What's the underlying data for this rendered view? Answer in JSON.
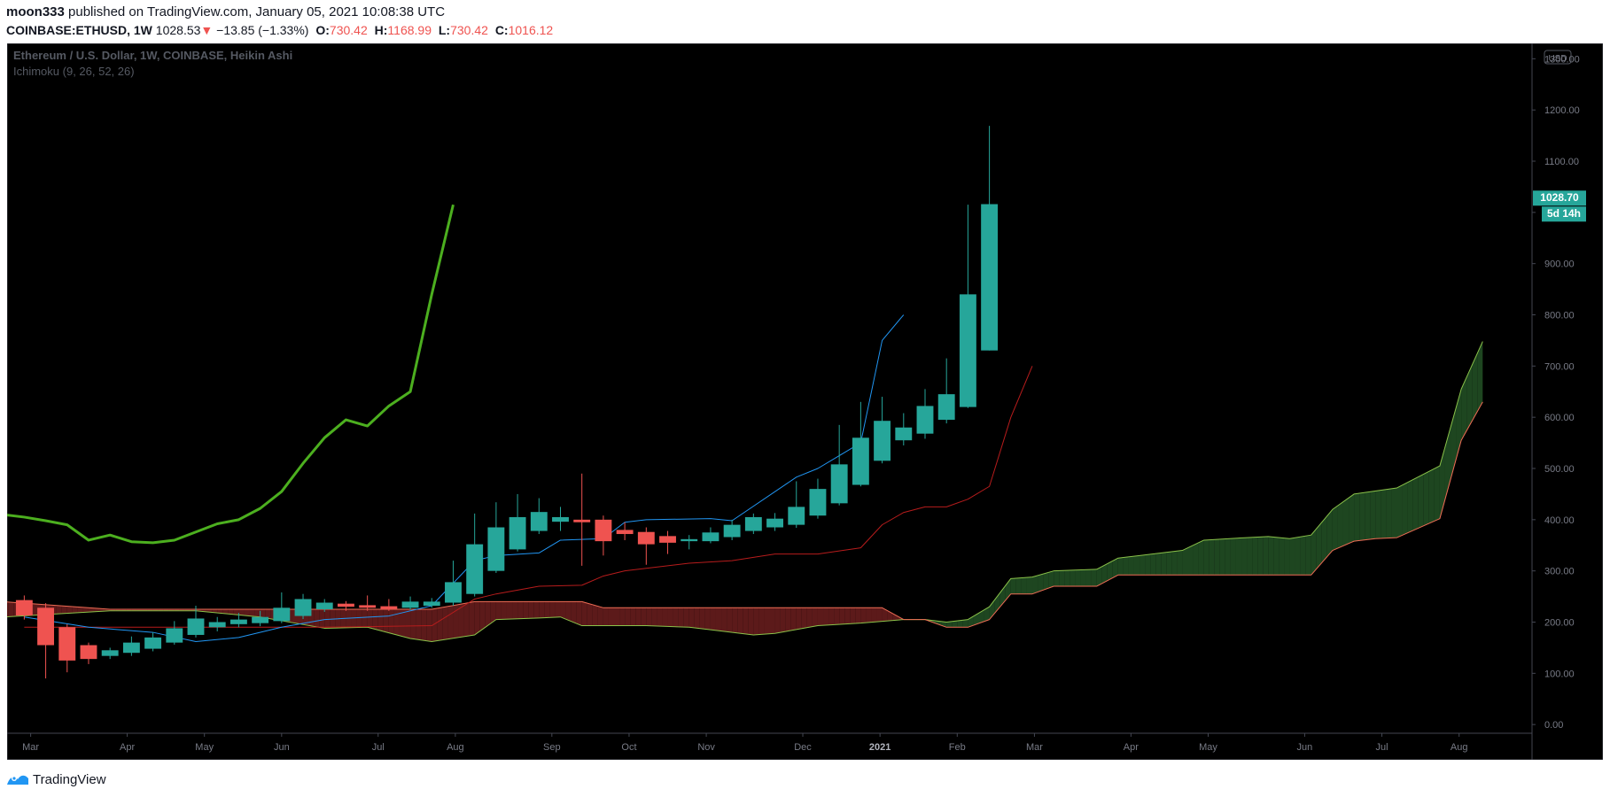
{
  "header": {
    "publisher": "moon333",
    "published_text": "published on TradingView.com, January 05, 2021 10:08:38 UTC",
    "symbol": "COINBASE:ETHUSD, 1W",
    "last_price": "1028.53",
    "change_arrow": "▼",
    "change": "−13.85 (−1.33%)",
    "o_label": "O:",
    "o_value": "730.42",
    "h_label": "H:",
    "h_value": "1168.99",
    "l_label": "L:",
    "l_value": "730.42",
    "c_label": "C:",
    "c_value": "1016.12"
  },
  "legend": {
    "title": "Ethereum / U.S. Dollar, 1W, COINBASE, Heikin Ashi",
    "indicator": "Ichimoku (9, 26, 52, 26)"
  },
  "price_scale": {
    "currency": "USD",
    "last_price_tag": "1028.70",
    "countdown_tag": "5d 14h"
  },
  "footer": {
    "brand": "TradingView",
    "logo_icon": "tradingview-logo-icon"
  },
  "colors": {
    "up": "#26a69a",
    "down": "#ef5350",
    "tenkan": "#2196f3",
    "kijun": "#b71c1c",
    "chikou": "#4caf1f",
    "cloud_bull": "#1e4620",
    "cloud_bear": "#5c1a1a",
    "span_a": "#8bc34a",
    "span_b": "#ef6c55",
    "background": "#000000",
    "axis_text": "#787b86"
  },
  "chart_data": {
    "type": "candlestick",
    "style": "Heikin Ashi",
    "timeframe": "1W",
    "x_start_week": -0.8,
    "x_end_week": 70.3,
    "ylim": [
      -17,
      1330
    ],
    "y_ticks": [
      0,
      100,
      200,
      300,
      400,
      500,
      600,
      700,
      800,
      900,
      1000,
      1100,
      1200,
      1300
    ],
    "y_tick_labels": [
      "0.00",
      "100.00",
      "200.00",
      "300.00",
      "400.00",
      "500.00",
      "600.00",
      "700.00",
      "800.00",
      "900.00",
      "1000.00",
      "1100.00",
      "1200.00",
      "1300.00"
    ],
    "x_labels": [
      {
        "label": "Mar",
        "week": 0.3
      },
      {
        "label": "Apr",
        "week": 4.8
      },
      {
        "label": "May",
        "week": 8.4
      },
      {
        "label": "Jun",
        "week": 12.0
      },
      {
        "label": "Jul",
        "week": 16.5
      },
      {
        "label": "Aug",
        "week": 20.1
      },
      {
        "label": "Sep",
        "week": 24.6
      },
      {
        "label": "Oct",
        "week": 28.2
      },
      {
        "label": "Nov",
        "week": 31.8
      },
      {
        "label": "Dec",
        "week": 36.3
      },
      {
        "label": "2021",
        "week": 39.9,
        "bold": true
      },
      {
        "label": "Feb",
        "week": 43.5
      },
      {
        "label": "Mar",
        "week": 47.1
      },
      {
        "label": "Apr",
        "week": 51.6
      },
      {
        "label": "May",
        "week": 55.2
      },
      {
        "label": "Jun",
        "week": 59.7
      },
      {
        "label": "Jul",
        "week": 63.3
      },
      {
        "label": "Aug",
        "week": 66.9
      }
    ],
    "candles": [
      {
        "o": 243,
        "h": 252,
        "l": 205,
        "c": 213
      },
      {
        "o": 228,
        "h": 237,
        "l": 90,
        "c": 155
      },
      {
        "o": 190,
        "h": 196,
        "l": 102,
        "c": 125
      },
      {
        "o": 155,
        "h": 160,
        "l": 118,
        "c": 128
      },
      {
        "o": 134,
        "h": 150,
        "l": 128,
        "c": 145
      },
      {
        "o": 140,
        "h": 172,
        "l": 134,
        "c": 160
      },
      {
        "o": 148,
        "h": 180,
        "l": 143,
        "c": 170
      },
      {
        "o": 160,
        "h": 202,
        "l": 156,
        "c": 188
      },
      {
        "o": 175,
        "h": 232,
        "l": 170,
        "c": 207
      },
      {
        "o": 190,
        "h": 210,
        "l": 182,
        "c": 200
      },
      {
        "o": 196,
        "h": 218,
        "l": 190,
        "c": 205
      },
      {
        "o": 198,
        "h": 222,
        "l": 192,
        "c": 210
      },
      {
        "o": 202,
        "h": 258,
        "l": 198,
        "c": 228
      },
      {
        "o": 212,
        "h": 255,
        "l": 206,
        "c": 245
      },
      {
        "o": 225,
        "h": 245,
        "l": 220,
        "c": 238
      },
      {
        "o": 236,
        "h": 241,
        "l": 222,
        "c": 230
      },
      {
        "o": 233,
        "h": 252,
        "l": 222,
        "c": 228
      },
      {
        "o": 231,
        "h": 245,
        "l": 222,
        "c": 225
      },
      {
        "o": 228,
        "h": 250,
        "l": 224,
        "c": 240
      },
      {
        "o": 232,
        "h": 247,
        "l": 228,
        "c": 240
      },
      {
        "o": 238,
        "h": 320,
        "l": 232,
        "c": 278
      },
      {
        "o": 255,
        "h": 412,
        "l": 250,
        "c": 352
      },
      {
        "o": 300,
        "h": 434,
        "l": 296,
        "c": 385
      },
      {
        "o": 342,
        "h": 450,
        "l": 338,
        "c": 405
      },
      {
        "o": 378,
        "h": 442,
        "l": 372,
        "c": 415
      },
      {
        "o": 396,
        "h": 425,
        "l": 378,
        "c": 405
      },
      {
        "o": 400,
        "h": 490,
        "l": 310,
        "c": 395
      },
      {
        "o": 400,
        "h": 408,
        "l": 330,
        "c": 358
      },
      {
        "o": 380,
        "h": 395,
        "l": 360,
        "c": 372
      },
      {
        "o": 376,
        "h": 385,
        "l": 312,
        "c": 352
      },
      {
        "o": 368,
        "h": 378,
        "l": 333,
        "c": 355
      },
      {
        "o": 358,
        "h": 370,
        "l": 342,
        "c": 362
      },
      {
        "o": 358,
        "h": 385,
        "l": 354,
        "c": 375
      },
      {
        "o": 366,
        "h": 400,
        "l": 360,
        "c": 390
      },
      {
        "o": 378,
        "h": 412,
        "l": 372,
        "c": 405
      },
      {
        "o": 385,
        "h": 413,
        "l": 378,
        "c": 402
      },
      {
        "o": 390,
        "h": 475,
        "l": 384,
        "c": 425
      },
      {
        "o": 408,
        "h": 480,
        "l": 402,
        "c": 460
      },
      {
        "o": 432,
        "h": 585,
        "l": 428,
        "c": 508
      },
      {
        "o": 468,
        "h": 630,
        "l": 465,
        "c": 560
      },
      {
        "o": 515,
        "h": 640,
        "l": 510,
        "c": 593
      },
      {
        "o": 555,
        "h": 608,
        "l": 545,
        "c": 580
      },
      {
        "o": 568,
        "h": 655,
        "l": 558,
        "c": 622
      },
      {
        "o": 595,
        "h": 715,
        "l": 588,
        "c": 645
      },
      {
        "o": 620,
        "h": 1015,
        "l": 618,
        "c": 840
      },
      {
        "o": 730.42,
        "h": 1168.99,
        "l": 730.42,
        "c": 1016.12
      }
    ],
    "tenkan": [
      [
        0,
        210
      ],
      [
        3,
        190
      ],
      [
        6,
        180
      ],
      [
        8,
        162
      ],
      [
        10,
        170
      ],
      [
        12,
        190
      ],
      [
        14,
        205
      ],
      [
        17,
        212
      ],
      [
        19,
        232
      ],
      [
        21,
        320
      ],
      [
        22,
        330
      ],
      [
        24,
        335
      ],
      [
        25,
        360
      ],
      [
        27,
        363
      ],
      [
        28,
        395
      ],
      [
        29,
        400
      ],
      [
        32,
        402
      ],
      [
        33,
        398
      ],
      [
        36,
        483
      ],
      [
        37,
        500
      ],
      [
        38,
        525
      ],
      [
        39,
        550
      ],
      [
        40,
        750
      ],
      [
        41,
        800
      ]
    ],
    "kijun": [
      [
        0,
        190
      ],
      [
        5,
        190
      ],
      [
        10,
        190
      ],
      [
        14,
        190
      ],
      [
        19,
        193
      ],
      [
        21,
        245
      ],
      [
        22,
        255
      ],
      [
        24,
        270
      ],
      [
        26,
        272
      ],
      [
        27,
        290
      ],
      [
        28,
        300
      ],
      [
        29,
        305
      ],
      [
        31,
        315
      ],
      [
        33,
        320
      ],
      [
        35,
        333
      ],
      [
        37,
        333
      ],
      [
        39,
        345
      ],
      [
        40,
        390
      ],
      [
        41,
        414
      ],
      [
        42,
        425
      ],
      [
        43,
        425
      ],
      [
        44,
        440
      ],
      [
        45,
        465
      ],
      [
        46,
        600
      ],
      [
        47,
        700
      ]
    ],
    "chikou": [
      [
        -1,
        410
      ],
      [
        0,
        405
      ],
      [
        1,
        398
      ],
      [
        2,
        390
      ],
      [
        3,
        360
      ],
      [
        4,
        370
      ],
      [
        5,
        357
      ],
      [
        6,
        355
      ],
      [
        7,
        360
      ],
      [
        8,
        376
      ],
      [
        9,
        392
      ],
      [
        10,
        400
      ],
      [
        11,
        422
      ],
      [
        12,
        455
      ],
      [
        13,
        510
      ],
      [
        14,
        560
      ],
      [
        15,
        595
      ],
      [
        16,
        583
      ],
      [
        17,
        622
      ],
      [
        18,
        650
      ],
      [
        19,
        840
      ],
      [
        20,
        1015
      ]
    ],
    "senkou_a": [
      [
        -1,
        210
      ],
      [
        4,
        222
      ],
      [
        8,
        222
      ],
      [
        11,
        210
      ],
      [
        14,
        188
      ],
      [
        16,
        190
      ],
      [
        18,
        168
      ],
      [
        19,
        162
      ],
      [
        21,
        175
      ],
      [
        22,
        205
      ],
      [
        24,
        208
      ],
      [
        25,
        210
      ],
      [
        26,
        193
      ],
      [
        29,
        193
      ],
      [
        31,
        190
      ],
      [
        32,
        185
      ],
      [
        34,
        175
      ],
      [
        35,
        178
      ],
      [
        37,
        193
      ],
      [
        39,
        198
      ],
      [
        41,
        205
      ],
      [
        42,
        205
      ],
      [
        43,
        200
      ],
      [
        44,
        205
      ],
      [
        45,
        230
      ],
      [
        46,
        285
      ],
      [
        47,
        288
      ],
      [
        48,
        300
      ],
      [
        50,
        303
      ],
      [
        51,
        325
      ],
      [
        52,
        330
      ],
      [
        54,
        340
      ],
      [
        55,
        360
      ],
      [
        57,
        365
      ],
      [
        58,
        367
      ],
      [
        59,
        363
      ],
      [
        60,
        370
      ],
      [
        61,
        420
      ],
      [
        62,
        450
      ],
      [
        64,
        462
      ],
      [
        66,
        505
      ],
      [
        67,
        655
      ],
      [
        68,
        748
      ]
    ],
    "senkou_b": [
      [
        -1,
        240
      ],
      [
        4,
        225
      ],
      [
        8,
        225
      ],
      [
        11,
        225
      ],
      [
        14,
        225
      ],
      [
        19,
        225
      ],
      [
        21,
        240
      ],
      [
        22,
        240
      ],
      [
        26,
        240
      ],
      [
        27,
        228
      ],
      [
        31,
        228
      ],
      [
        35,
        228
      ],
      [
        39,
        228
      ],
      [
        40,
        228
      ],
      [
        41,
        205
      ],
      [
        42,
        205
      ],
      [
        43,
        190
      ],
      [
        44,
        190
      ],
      [
        45,
        205
      ],
      [
        46,
        255
      ],
      [
        47,
        255
      ],
      [
        48,
        270
      ],
      [
        50,
        270
      ],
      [
        51,
        292
      ],
      [
        59,
        292
      ],
      [
        60,
        292
      ],
      [
        61,
        340
      ],
      [
        62,
        358
      ],
      [
        63,
        363
      ],
      [
        64,
        365
      ],
      [
        66,
        402
      ],
      [
        67,
        555
      ],
      [
        68,
        630
      ]
    ]
  }
}
